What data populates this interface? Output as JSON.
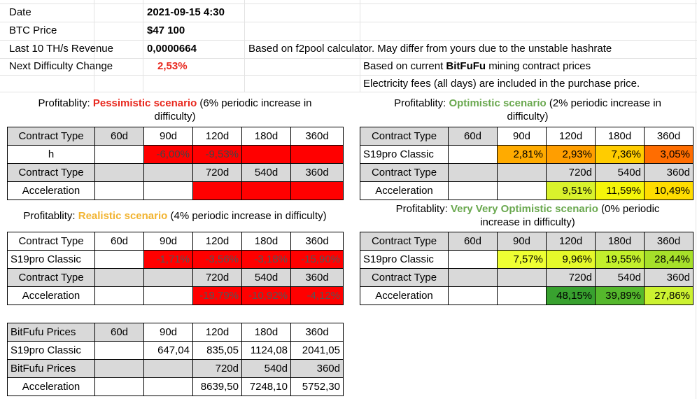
{
  "info": {
    "date_label": "Date",
    "date_value": "2021-09-15 4:30",
    "btc_label": "BTC Price",
    "btc_value": "$47 100",
    "rev_label": "Last 10 TH/s Revenue",
    "rev_value": "0,0000664",
    "diff_label": "Next Difficulty Change",
    "diff_value": "2,53%",
    "note1": "Based on f2pool calculator. May differ from yours due to the unstable hashrate",
    "note2_pre": "Based on current ",
    "note2_brand": "BitFuFu",
    "note2_post": " mining contract prices",
    "note3": "Electricity fees (all days) are included in the purchase price."
  },
  "colors": {
    "pessimistic": "#e8281e",
    "realistic": "#f2b431",
    "optimistic": "#6aa84f",
    "red": "#ff0000",
    "orange": "#ff6d01",
    "amber": "#ffab00",
    "yellow_green": "#d9f22c",
    "dark_green": "#38a12f",
    "lime": "#ccff33"
  },
  "pessimistic": {
    "prefix": "Profitablity: ",
    "name": "Pessimistic scenario",
    "suffix_line1": " (6% periodic increase in",
    "line2": "difficulty)",
    "rows": [
      [
        "Contract Type",
        "60d",
        "90d",
        "120d",
        "180d",
        "360d"
      ],
      [
        "h",
        "",
        "-6,00%",
        "-9,53%",
        "",
        ""
      ],
      [
        "Contract Type",
        "",
        "",
        "720d",
        "540d",
        "360d"
      ],
      [
        "Acceleration",
        "",
        "",
        "",
        "",
        ""
      ]
    ]
  },
  "optimistic": {
    "prefix": "Profitablity: ",
    "name": "Optimistic scenario",
    "suffix_line1": " (2% periodic increase in",
    "line2": "difficulty)",
    "rows": [
      [
        "Contract Type",
        "60d",
        "90d",
        "120d",
        "180d",
        "360d"
      ],
      [
        "S19pro Classic",
        "",
        "2,81%",
        "2,93%",
        "7,36%",
        "3,05%"
      ],
      [
        "Contract Type",
        "",
        "",
        "720d",
        "540d",
        "360d"
      ],
      [
        "Acceleration",
        "",
        "",
        "9,51%",
        "11,59%",
        "10,49%"
      ]
    ]
  },
  "realistic": {
    "prefix": "Profitablity: ",
    "name": "Realistic scenario",
    "suffix": " (4% periodic increase in difficulty)",
    "rows": [
      [
        "Contract Type",
        "60d",
        "90d",
        "120d",
        "180d",
        "360d"
      ],
      [
        "S19pro Classic",
        "",
        "-1,71%",
        "-3,56%",
        "-3,18%",
        "-15,90%"
      ],
      [
        "Contract Type",
        "",
        "",
        "720d",
        "540d",
        "360d"
      ],
      [
        "Acceleration",
        "",
        "",
        "-19,79%",
        "-10,92%",
        "-4,12%"
      ]
    ]
  },
  "very_optimistic": {
    "prefix": "Profitablity: ",
    "name": "Very Very Optimistic scenario",
    "suffix_line1": " (0% periodic",
    "line2": "increase in difficulty)",
    "rows": [
      [
        "Contract Type",
        "60d",
        "90d",
        "120d",
        "180d",
        "360d"
      ],
      [
        "S19pro Classic",
        "",
        "7,57%",
        "9,96%",
        "19,55%",
        "28,44%"
      ],
      [
        "Contract Type",
        "",
        "",
        "720d",
        "540d",
        "360d"
      ],
      [
        "Acceleration",
        "",
        "",
        "48,15%",
        "39,89%",
        "27,86%"
      ]
    ]
  },
  "prices": {
    "rows": [
      [
        "BitFufu Prices",
        "60d",
        "90d",
        "120d",
        "180d",
        "360d"
      ],
      [
        "S19pro Classic",
        "",
        "647,04",
        "835,05",
        "1124,08",
        "2041,05"
      ],
      [
        "BitFufu Prices",
        "",
        "",
        "720d",
        "540d",
        "360d"
      ],
      [
        "Acceleration",
        "",
        "",
        "8639,50",
        "7248,10",
        "5752,30"
      ]
    ]
  }
}
